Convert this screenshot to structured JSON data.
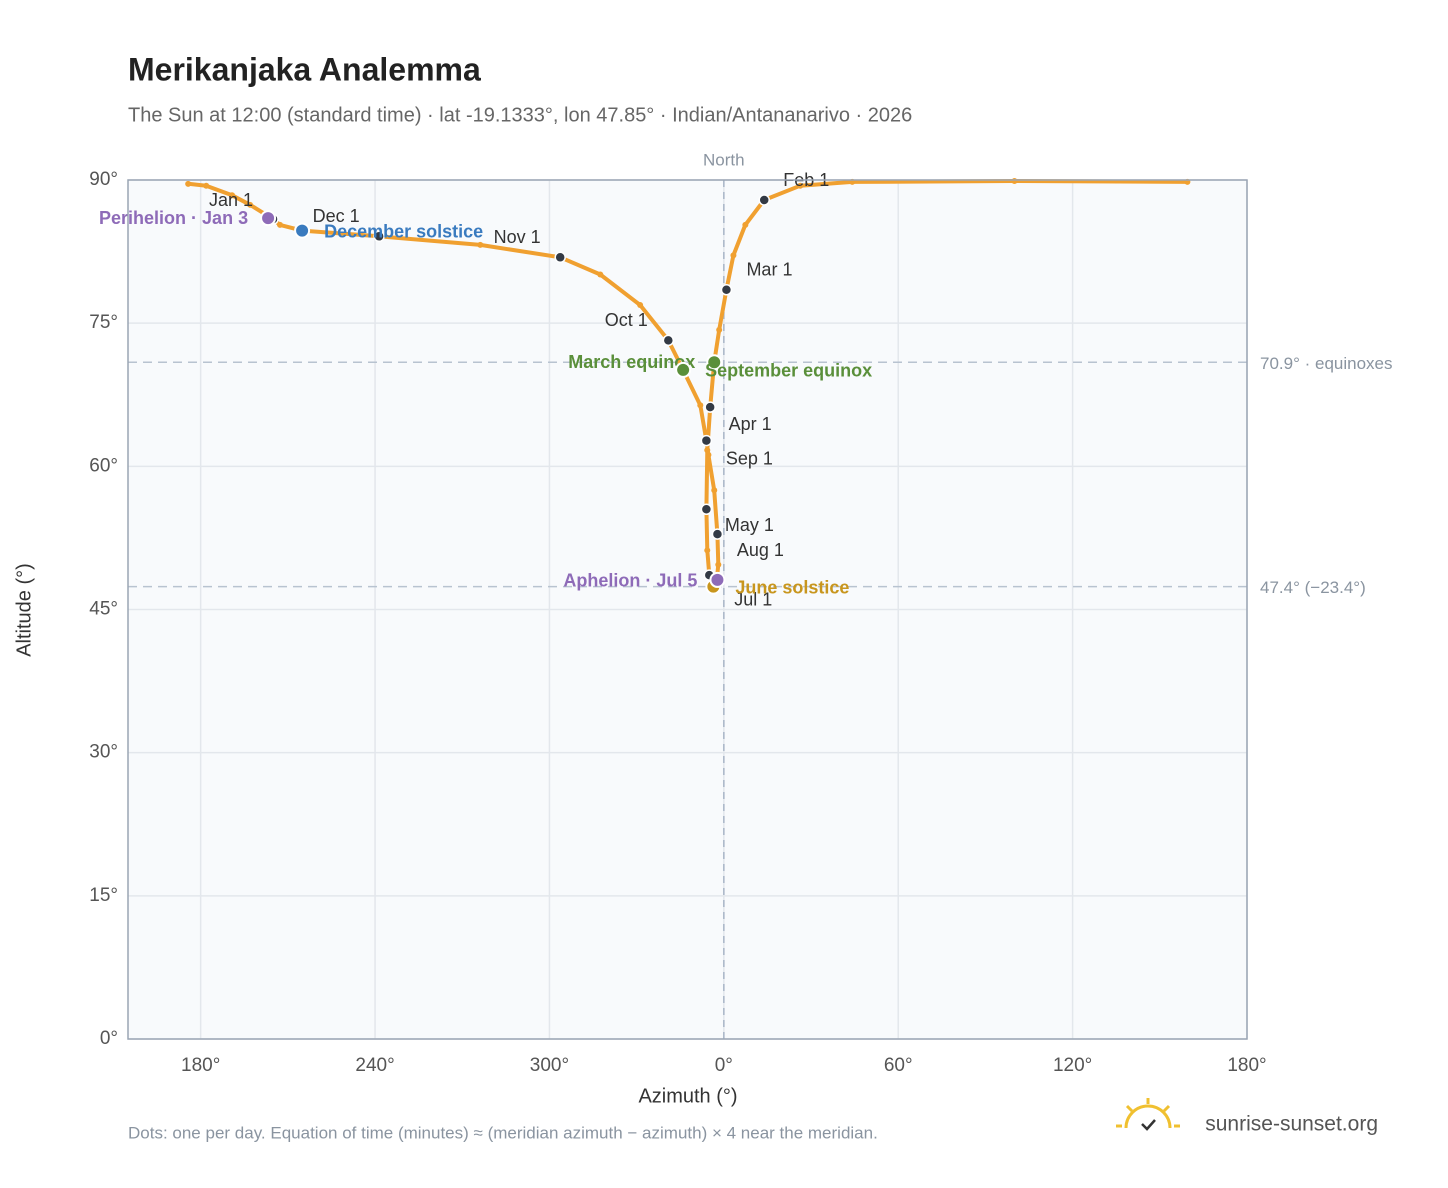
{
  "chart_data": {
    "type": "scatter",
    "title": "Merikanjaka Analemma",
    "subtitle": "The Sun at 12:00 (standard time) · lat -19.1333°, lon 47.85° · Indian/Antananarivo · 2026",
    "x_label": "Azimuth (°)",
    "y_label": "Altitude (°)",
    "xlim": [
      155,
      540
    ],
    "ylim": [
      0,
      90
    ],
    "xticks": [
      {
        "value": 180,
        "label": "180°"
      },
      {
        "value": 240,
        "label": "240°"
      },
      {
        "value": 300,
        "label": "300°"
      },
      {
        "value": 360,
        "label": "0°"
      },
      {
        "value": 420,
        "label": "60°"
      },
      {
        "value": 480,
        "label": "120°"
      },
      {
        "value": 540,
        "label": "180°"
      }
    ],
    "yticks": [
      {
        "value": 0,
        "label": "0°"
      },
      {
        "value": 15,
        "label": "15°"
      },
      {
        "value": 30,
        "label": "30°"
      },
      {
        "value": 45,
        "label": "45°"
      },
      {
        "value": 60,
        "label": "60°"
      },
      {
        "value": 75,
        "label": "75°"
      },
      {
        "value": 90,
        "label": "90°"
      }
    ],
    "grid": true,
    "daily": {
      "color": "#f0a030",
      "x": [
        204.9,
        197.0,
        190.8,
        181.9,
        175.7,
        null,
        519.5,
        460.0,
        404.2,
        386.3,
        373.9,
        367.4,
        363.3,
        360.9,
        358.4,
        356.7,
        355.3,
        354.3,
        354.0,
        354.3,
        355.0,
        356.0,
        357.4,
        358.1,
        357.8,
        356.7,
        354.7,
        354.0,
        351.9,
        346.0,
        340.9,
        331.2,
        317.5,
        303.7,
        276.2,
        241.4,
        214.9,
        207.3,
        204.9
      ],
      "y": [
        85.9,
        87.4,
        88.4,
        89.4,
        89.6,
        null,
        89.8,
        89.9,
        89.8,
        89.4,
        87.9,
        85.3,
        82.1,
        78.5,
        74.3,
        70.9,
        66.2,
        61.7,
        55.5,
        51.2,
        48.6,
        47.6,
        47.6,
        49.7,
        52.9,
        57.5,
        61.2,
        62.7,
        66.4,
        70.1,
        73.2,
        76.9,
        80.1,
        81.9,
        83.2,
        84.1,
        84.7,
        85.3,
        85.9
      ]
    },
    "months": {
      "color": "#333a45",
      "labels": [
        "Jan 1",
        "Feb 1",
        "Mar 1",
        "Apr 1",
        "May 1",
        null,
        "Jul 1",
        "Aug 1",
        "Sep 1",
        "Oct 1",
        "Nov 1",
        "Dec 1"
      ],
      "x": [
        204.9,
        373.9,
        360.9,
        355.3,
        354.0,
        355.0,
        356.7,
        357.8,
        354.0,
        340.9,
        303.7,
        241.4
      ],
      "y": [
        85.9,
        87.9,
        78.5,
        66.2,
        55.5,
        48.6,
        47.5,
        52.9,
        62.7,
        73.2,
        81.9,
        84.1
      ]
    },
    "events": [
      {
        "name": "Perihelion · Jan 3",
        "color": "#8e6bb8",
        "x": 203.2,
        "y": 86.0
      },
      {
        "name": "December solstice",
        "color": "#3a7bbf",
        "x": 214.9,
        "y": 84.7
      },
      {
        "name": "March equinox",
        "color": "#5a8f3a",
        "x": 356.7,
        "y": 70.9
      },
      {
        "name": "September equinox",
        "color": "#5a8f3a",
        "x": 346.0,
        "y": 70.1
      },
      {
        "name": "June solstice",
        "color": "#c8961e",
        "x": 356.4,
        "y": 47.4
      },
      {
        "name": "Aphelion · Jul 5",
        "color": "#8e6bb8",
        "x": 357.8,
        "y": 48.1
      }
    ],
    "reference_lines": [
      {
        "value": 70.9,
        "label": "70.9° · equinoxes"
      },
      {
        "value": 47.4,
        "label": "47.4° (−23.4°)"
      }
    ],
    "north": {
      "value": 360,
      "label": "North"
    },
    "footnote": "Dots: one per day. Equation of time (minutes) ≈ (meridian azimuth − azimuth) × 4 near the meridian.",
    "brand": "sunrise-sunset.org"
  }
}
